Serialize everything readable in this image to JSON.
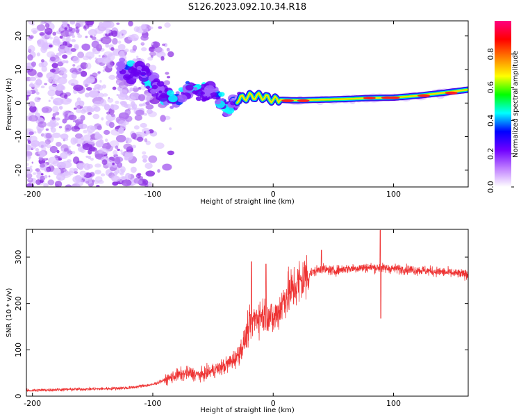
{
  "title": "S126.2023.092.10.34.R18",
  "colorbar": {
    "label": "Normalized spectral amplitude",
    "ticks": [
      "0.0",
      "0.2",
      "0.4",
      "0.6",
      "0.8"
    ],
    "tick_values": [
      0.0,
      0.2,
      0.4,
      0.6,
      0.8
    ],
    "range": [
      0,
      1
    ],
    "colors": [
      "#ffffff",
      "#c080ff",
      "#7000ff",
      "#0000ff",
      "#00ffff",
      "#00ff00",
      "#ffff00",
      "#ff8000",
      "#ff0000",
      "#ff0080"
    ]
  },
  "chart_data": [
    {
      "type": "heatmap",
      "xlabel": "Height of straight line (km)",
      "ylabel": "Frequency (Hz)",
      "xlim": [
        -205,
        162
      ],
      "ylim": [
        -25,
        24.5
      ],
      "xticks": [
        -200,
        -100,
        0,
        100
      ],
      "xtick_labels": [
        "-200",
        "-100",
        "0",
        "100"
      ],
      "yticks": [
        -20,
        -10,
        0,
        10,
        20
      ],
      "ytick_labels": [
        "-20",
        "-10",
        "0",
        "10",
        "20"
      ],
      "ridge": {
        "x": [
          -125,
          -110,
          -100,
          -90,
          -80,
          -70,
          -60,
          -50,
          -40,
          -30,
          -20,
          -10,
          0,
          20,
          40,
          60,
          80,
          100,
          120,
          140,
          162
        ],
        "y": [
          10,
          9,
          6,
          2,
          1,
          5,
          3,
          4,
          -2,
          1,
          2,
          2,
          1,
          0.8,
          1,
          1.2,
          1.5,
          1.6,
          2.2,
          3,
          4
        ]
      },
      "background_noise_range_km": [
        -205,
        -100
      ]
    },
    {
      "type": "line",
      "xlabel": "Height of straight line (km)",
      "ylabel": "SNR (10 * v/v)",
      "xlim": [
        -205,
        162
      ],
      "ylim": [
        0,
        360
      ],
      "xticks": [
        -200,
        -100,
        0,
        100
      ],
      "xtick_labels": [
        "-200",
        "-100",
        "0",
        "100"
      ],
      "yticks": [
        0,
        100,
        200,
        300
      ],
      "ytick_labels": [
        "0",
        "100",
        "200",
        "300"
      ],
      "color": "#ee3333",
      "series": [
        {
          "x": [
            -205,
            -180,
            -160,
            -140,
            -120,
            -100,
            -90,
            -80,
            -70,
            -60,
            -50,
            -40,
            -30,
            -25,
            -20,
            -15,
            -10,
            -5,
            0,
            5,
            10,
            20,
            30,
            40,
            50,
            60,
            80,
            100,
            120,
            140,
            162
          ],
          "values": [
            12,
            14,
            15,
            16,
            18,
            25,
            35,
            45,
            50,
            45,
            55,
            65,
            85,
            110,
            150,
            170,
            175,
            180,
            165,
            185,
            215,
            240,
            265,
            275,
            270,
            275,
            278,
            275,
            272,
            268,
            262
          ]
        }
      ],
      "spikes": [
        {
          "x": -18,
          "y": 290
        },
        {
          "x": -6,
          "y": 285
        },
        {
          "x": 40,
          "y": 315
        },
        {
          "x": 89,
          "y": 358
        },
        {
          "x": 89.5,
          "y": 168
        }
      ]
    }
  ]
}
